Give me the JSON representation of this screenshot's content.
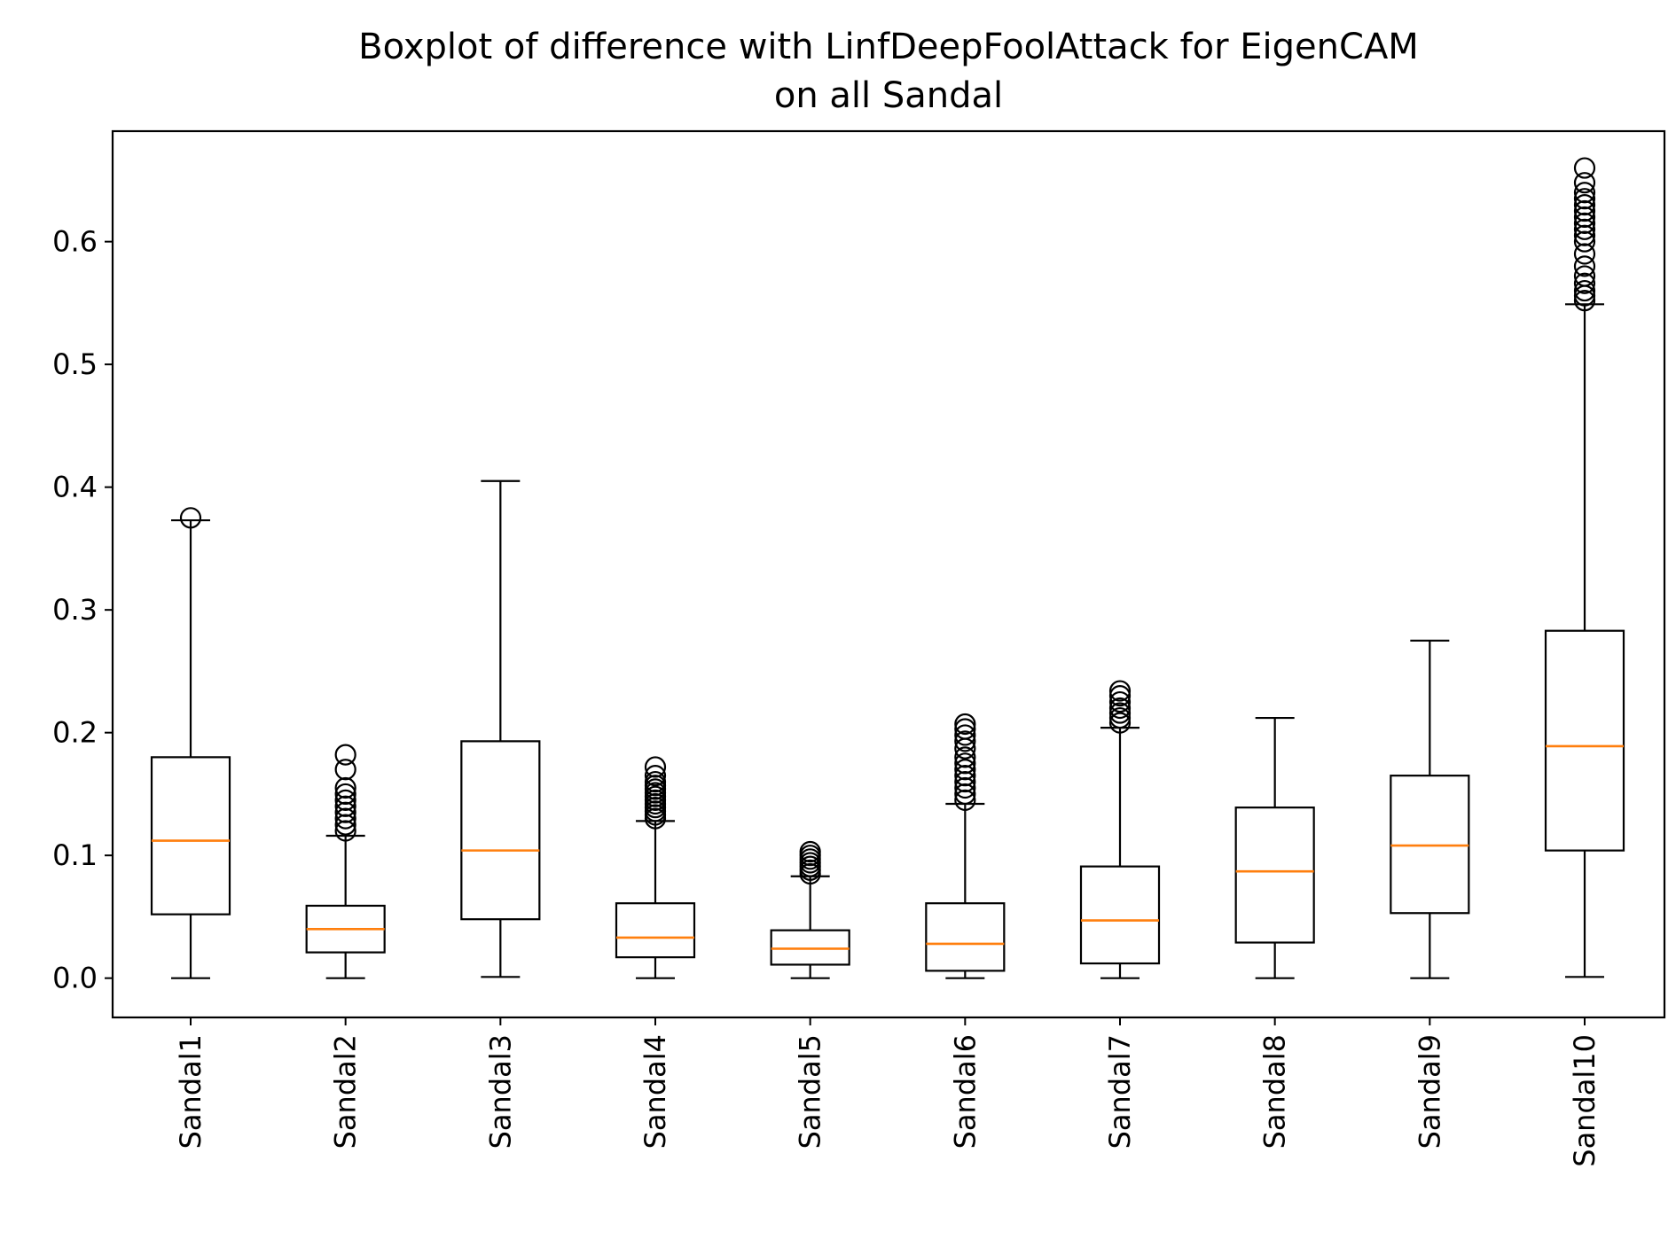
{
  "chart_data": {
    "type": "boxplot",
    "title_lines": [
      "Boxplot of difference with LinfDeepFoolAttack for EigenCAM",
      "on all Sandal"
    ],
    "xlabel": "",
    "ylabel": "",
    "ylim": [
      -0.032,
      0.69
    ],
    "yticks": [
      0.0,
      0.1,
      0.2,
      0.3,
      0.4,
      0.5,
      0.6
    ],
    "ytick_labels": [
      "0.0",
      "0.1",
      "0.2",
      "0.3",
      "0.4",
      "0.5",
      "0.6"
    ],
    "grid": false,
    "colors": {
      "box": "#000000",
      "median": "#ff7f0e",
      "outlier": "#000000"
    },
    "categories": [
      "Sandal1",
      "Sandal2",
      "Sandal3",
      "Sandal4",
      "Sandal5",
      "Sandal6",
      "Sandal7",
      "Sandal8",
      "Sandal9",
      "Sandal10"
    ],
    "boxes": [
      {
        "name": "Sandal1",
        "whisker_low": 0.0,
        "q1": 0.052,
        "median": 0.112,
        "q3": 0.18,
        "whisker_high": 0.373,
        "outliers": [
          0.375
        ]
      },
      {
        "name": "Sandal2",
        "whisker_low": 0.0,
        "q1": 0.021,
        "median": 0.04,
        "q3": 0.059,
        "whisker_high": 0.116,
        "outliers": [
          0.12,
          0.125,
          0.13,
          0.135,
          0.14,
          0.145,
          0.15,
          0.155,
          0.17,
          0.182
        ]
      },
      {
        "name": "Sandal3",
        "whisker_low": 0.001,
        "q1": 0.048,
        "median": 0.104,
        "q3": 0.193,
        "whisker_high": 0.405,
        "outliers": []
      },
      {
        "name": "Sandal4",
        "whisker_low": 0.0,
        "q1": 0.017,
        "median": 0.033,
        "q3": 0.061,
        "whisker_high": 0.128,
        "outliers": [
          0.13,
          0.133,
          0.136,
          0.139,
          0.142,
          0.145,
          0.148,
          0.151,
          0.154,
          0.157,
          0.16,
          0.165,
          0.172
        ]
      },
      {
        "name": "Sandal5",
        "whisker_low": 0.0,
        "q1": 0.011,
        "median": 0.024,
        "q3": 0.039,
        "whisker_high": 0.083,
        "outliers": [
          0.085,
          0.088,
          0.091,
          0.094,
          0.097,
          0.1,
          0.103
        ]
      },
      {
        "name": "Sandal6",
        "whisker_low": 0.0,
        "q1": 0.006,
        "median": 0.028,
        "q3": 0.061,
        "whisker_high": 0.142,
        "outliers": [
          0.145,
          0.15,
          0.155,
          0.16,
          0.165,
          0.17,
          0.175,
          0.18,
          0.187,
          0.193,
          0.198,
          0.203,
          0.207
        ]
      },
      {
        "name": "Sandal7",
        "whisker_low": 0.0,
        "q1": 0.012,
        "median": 0.047,
        "q3": 0.091,
        "whisker_high": 0.204,
        "outliers": [
          0.208,
          0.212,
          0.216,
          0.22,
          0.225,
          0.23,
          0.234
        ]
      },
      {
        "name": "Sandal8",
        "whisker_low": 0.0,
        "q1": 0.029,
        "median": 0.087,
        "q3": 0.139,
        "whisker_high": 0.212,
        "outliers": []
      },
      {
        "name": "Sandal9",
        "whisker_low": 0.0,
        "q1": 0.053,
        "median": 0.108,
        "q3": 0.165,
        "whisker_high": 0.275,
        "outliers": []
      },
      {
        "name": "Sandal10",
        "whisker_low": 0.001,
        "q1": 0.104,
        "median": 0.189,
        "q3": 0.283,
        "whisker_high": 0.549,
        "outliers": [
          0.552,
          0.556,
          0.56,
          0.566,
          0.572,
          0.58,
          0.59,
          0.6,
          0.605,
          0.61,
          0.615,
          0.62,
          0.625,
          0.63,
          0.635,
          0.64,
          0.648,
          0.66
        ]
      }
    ]
  }
}
